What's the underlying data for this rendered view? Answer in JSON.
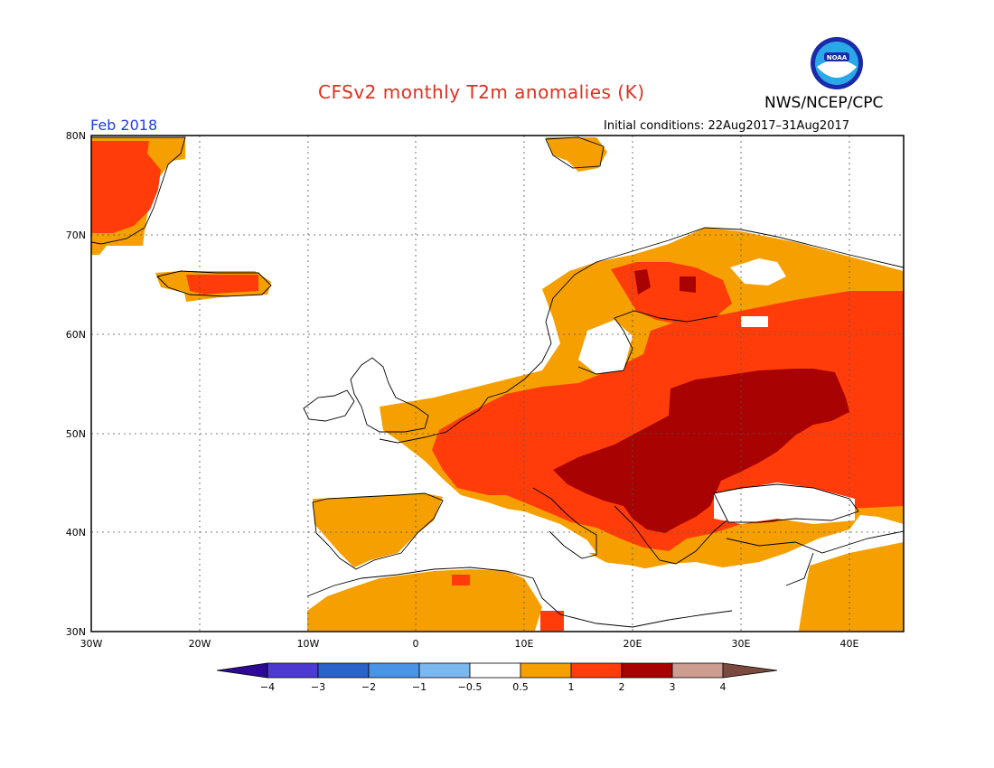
{
  "header": {
    "title": "CFSv2 monthly T2m anomalies (K)",
    "org": "NWS/NCEP/CPC",
    "month": "Feb 2018",
    "initial_conditions": "Initial conditions: 22Aug2017–31Aug2017",
    "logo_text": "NOAA"
  },
  "map": {
    "extent": {
      "lon": [
        -30,
        45
      ],
      "lat": [
        30,
        80
      ]
    },
    "lat_labels": [
      "80N",
      "70N",
      "60N",
      "50N",
      "40N",
      "30N"
    ],
    "lon_labels": [
      "30W",
      "20W",
      "10W",
      "0",
      "10E",
      "20E",
      "30E",
      "40E"
    ],
    "grid": "dotted"
  },
  "colorbar": {
    "labels": [
      "−4",
      "−3",
      "−2",
      "−1",
      "−0.5",
      "0.5",
      "1",
      "2",
      "3",
      "4"
    ],
    "colors": [
      "#2c0a96",
      "#4c3ad2",
      "#2a62cc",
      "#4a94e8",
      "#7cb8f0",
      "#ffffff",
      "#f5a000",
      "#ff3c0a",
      "#a80202",
      "#cc9d90",
      "#7a4a3e"
    ]
  }
}
